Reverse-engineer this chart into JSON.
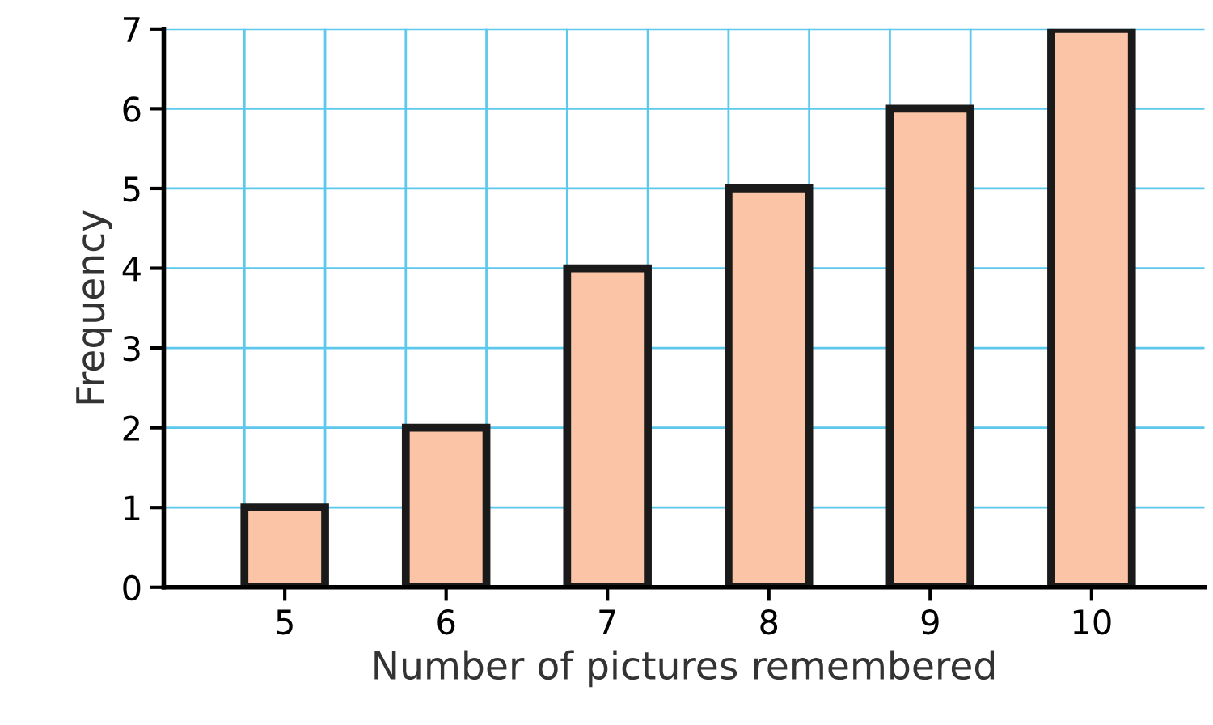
{
  "chart_data": {
    "type": "bar",
    "xlabel": "Number of pictures remembered",
    "ylabel": "Frequency",
    "categories": [
      "5",
      "6",
      "7",
      "8",
      "9",
      "10"
    ],
    "values": [
      1,
      2,
      4,
      5,
      6,
      7
    ],
    "color": "#fbc4a6",
    "ylim": [
      0,
      7
    ],
    "yticks": [
      0,
      1,
      2,
      3,
      4,
      5,
      6,
      7
    ],
    "grid": true
  }
}
